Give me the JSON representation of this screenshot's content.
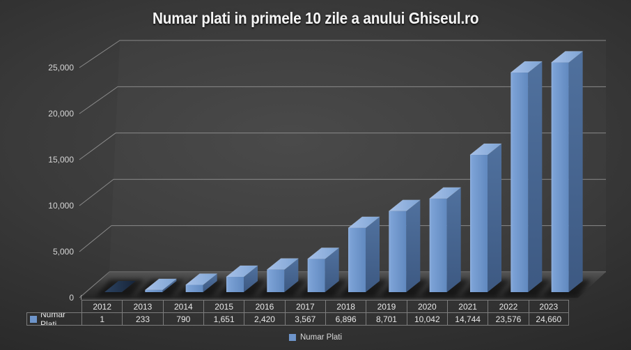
{
  "title": "Numar plati in primele 10 zile a anului Ghiseul.ro",
  "chart_data": {
    "type": "bar",
    "variant": "3d-column",
    "title": "Numar plati in primele 10 zile a anului Ghiseul.ro",
    "categories": [
      "2012",
      "2013",
      "2014",
      "2015",
      "2016",
      "2017",
      "2018",
      "2019",
      "2020",
      "2021",
      "2022",
      "2023"
    ],
    "series": [
      {
        "name": "Numar Plati",
        "values": [
          1,
          233,
          790,
          1651,
          2420,
          3567,
          6896,
          8701,
          10042,
          14744,
          23576,
          24660
        ]
      }
    ],
    "value_labels": [
      "1",
      "233",
      "790",
      "1,651",
      "2,420",
      "3,567",
      "6,896",
      "8,701",
      "10,042",
      "14,744",
      "23,576",
      "24,660"
    ],
    "y_axis": {
      "min": 0,
      "max": 25000,
      "step": 5000,
      "tick_labels": [
        "0",
        "5,000",
        "10,000",
        "15,000",
        "20,000",
        "25,000"
      ]
    },
    "legend": {
      "position": "bottom",
      "entries": [
        "Numar Plati"
      ]
    },
    "grid": true,
    "data_table_shown": true,
    "colors": {
      "title_text": "#F5F5F5",
      "axis_text": "#D6D6D6",
      "table_text": "#E8E8E8",
      "table_border": "#7D7D7D",
      "legend_text": "#D9D9D9",
      "gridline": "#989898",
      "swatch": "#6E95CB",
      "bar_front_light": "#8FB0DE",
      "bar_front": "#7CA2D6",
      "bar_front_dark": "#6189BF",
      "bar_side": "#50719E",
      "bar_side_dark": "#3D5982",
      "bar_top": "#A6C0E8",
      "bar_top_dark": "#7EA4D4",
      "first_bar": "#2C4362",
      "first_bar_dark": "#162438",
      "bg_center": "#464646",
      "bg_edge": "#1F1F1F"
    }
  }
}
